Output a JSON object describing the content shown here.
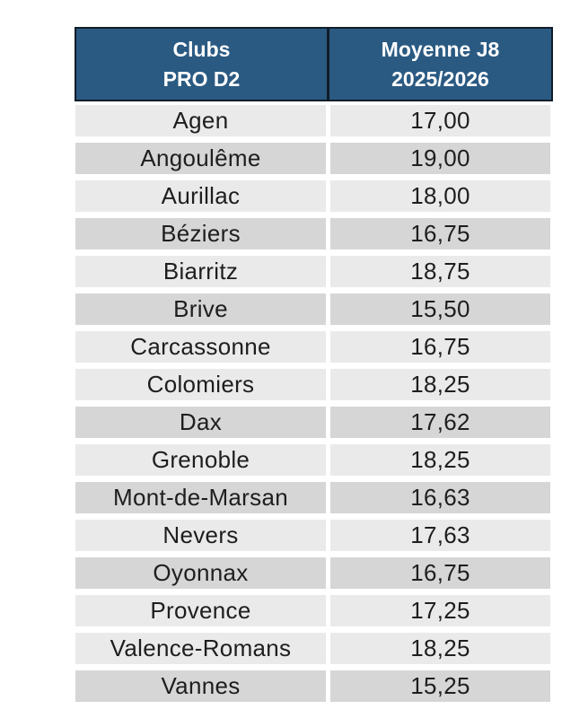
{
  "table": {
    "header": {
      "clubs_line1": "Clubs",
      "clubs_line2": "PRO D2",
      "moyenne_line1": "Moyenne J8",
      "moyenne_line2": "2025/2026"
    },
    "rows": [
      {
        "club": "Agen",
        "value": "17,00"
      },
      {
        "club": "Angoulême",
        "value": "19,00"
      },
      {
        "club": "Aurillac",
        "value": "18,00"
      },
      {
        "club": "Béziers",
        "value": "16,75"
      },
      {
        "club": "Biarritz",
        "value": "18,75"
      },
      {
        "club": "Brive",
        "value": "15,50"
      },
      {
        "club": "Carcassonne",
        "value": "16,75"
      },
      {
        "club": "Colomiers",
        "value": "18,25"
      },
      {
        "club": "Dax",
        "value": "17,62"
      },
      {
        "club": "Grenoble",
        "value": "18,25"
      },
      {
        "club": "Mont-de-Marsan",
        "value": "16,63"
      },
      {
        "club": "Nevers",
        "value": "17,63"
      },
      {
        "club": "Oyonnax",
        "value": "16,75"
      },
      {
        "club": "Provence",
        "value": "17,25"
      },
      {
        "club": "Valence-Romans",
        "value": "18,25"
      },
      {
        "club": "Vannes",
        "value": "15,25"
      }
    ]
  },
  "colors": {
    "header_bg": "#2A5A82",
    "header_border": "#101D2A",
    "header_text": "#FFFFFF",
    "row_light": "#EAEAEA",
    "row_dark": "#D6D6D6",
    "row_text": "#1E1E1E",
    "page_bg": "#FFFFFF"
  },
  "chart_data": {
    "type": "table",
    "title": "",
    "columns": [
      "Clubs PRO D2",
      "Moyenne J8 2025/2026"
    ],
    "categories": [
      "Agen",
      "Angoulême",
      "Aurillac",
      "Béziers",
      "Biarritz",
      "Brive",
      "Carcassonne",
      "Colomiers",
      "Dax",
      "Grenoble",
      "Mont-de-Marsan",
      "Nevers",
      "Oyonnax",
      "Provence",
      "Valence-Romans",
      "Vannes"
    ],
    "values": [
      17.0,
      19.0,
      18.0,
      16.75,
      18.75,
      15.5,
      16.75,
      18.25,
      17.62,
      18.25,
      16.63,
      17.63,
      16.75,
      17.25,
      18.25,
      15.25
    ],
    "value_format": "comma-decimal, 2 digits",
    "layout": {
      "header_rows": 1,
      "banding": [
        "light",
        "dark",
        "light",
        "dark",
        "light",
        "dark",
        "light",
        "light",
        "dark",
        "light",
        "dark",
        "light",
        "dark",
        "light",
        "light",
        "dark"
      ],
      "grid": "white gaps between cells, dark border around header only",
      "alignment": "center"
    }
  }
}
